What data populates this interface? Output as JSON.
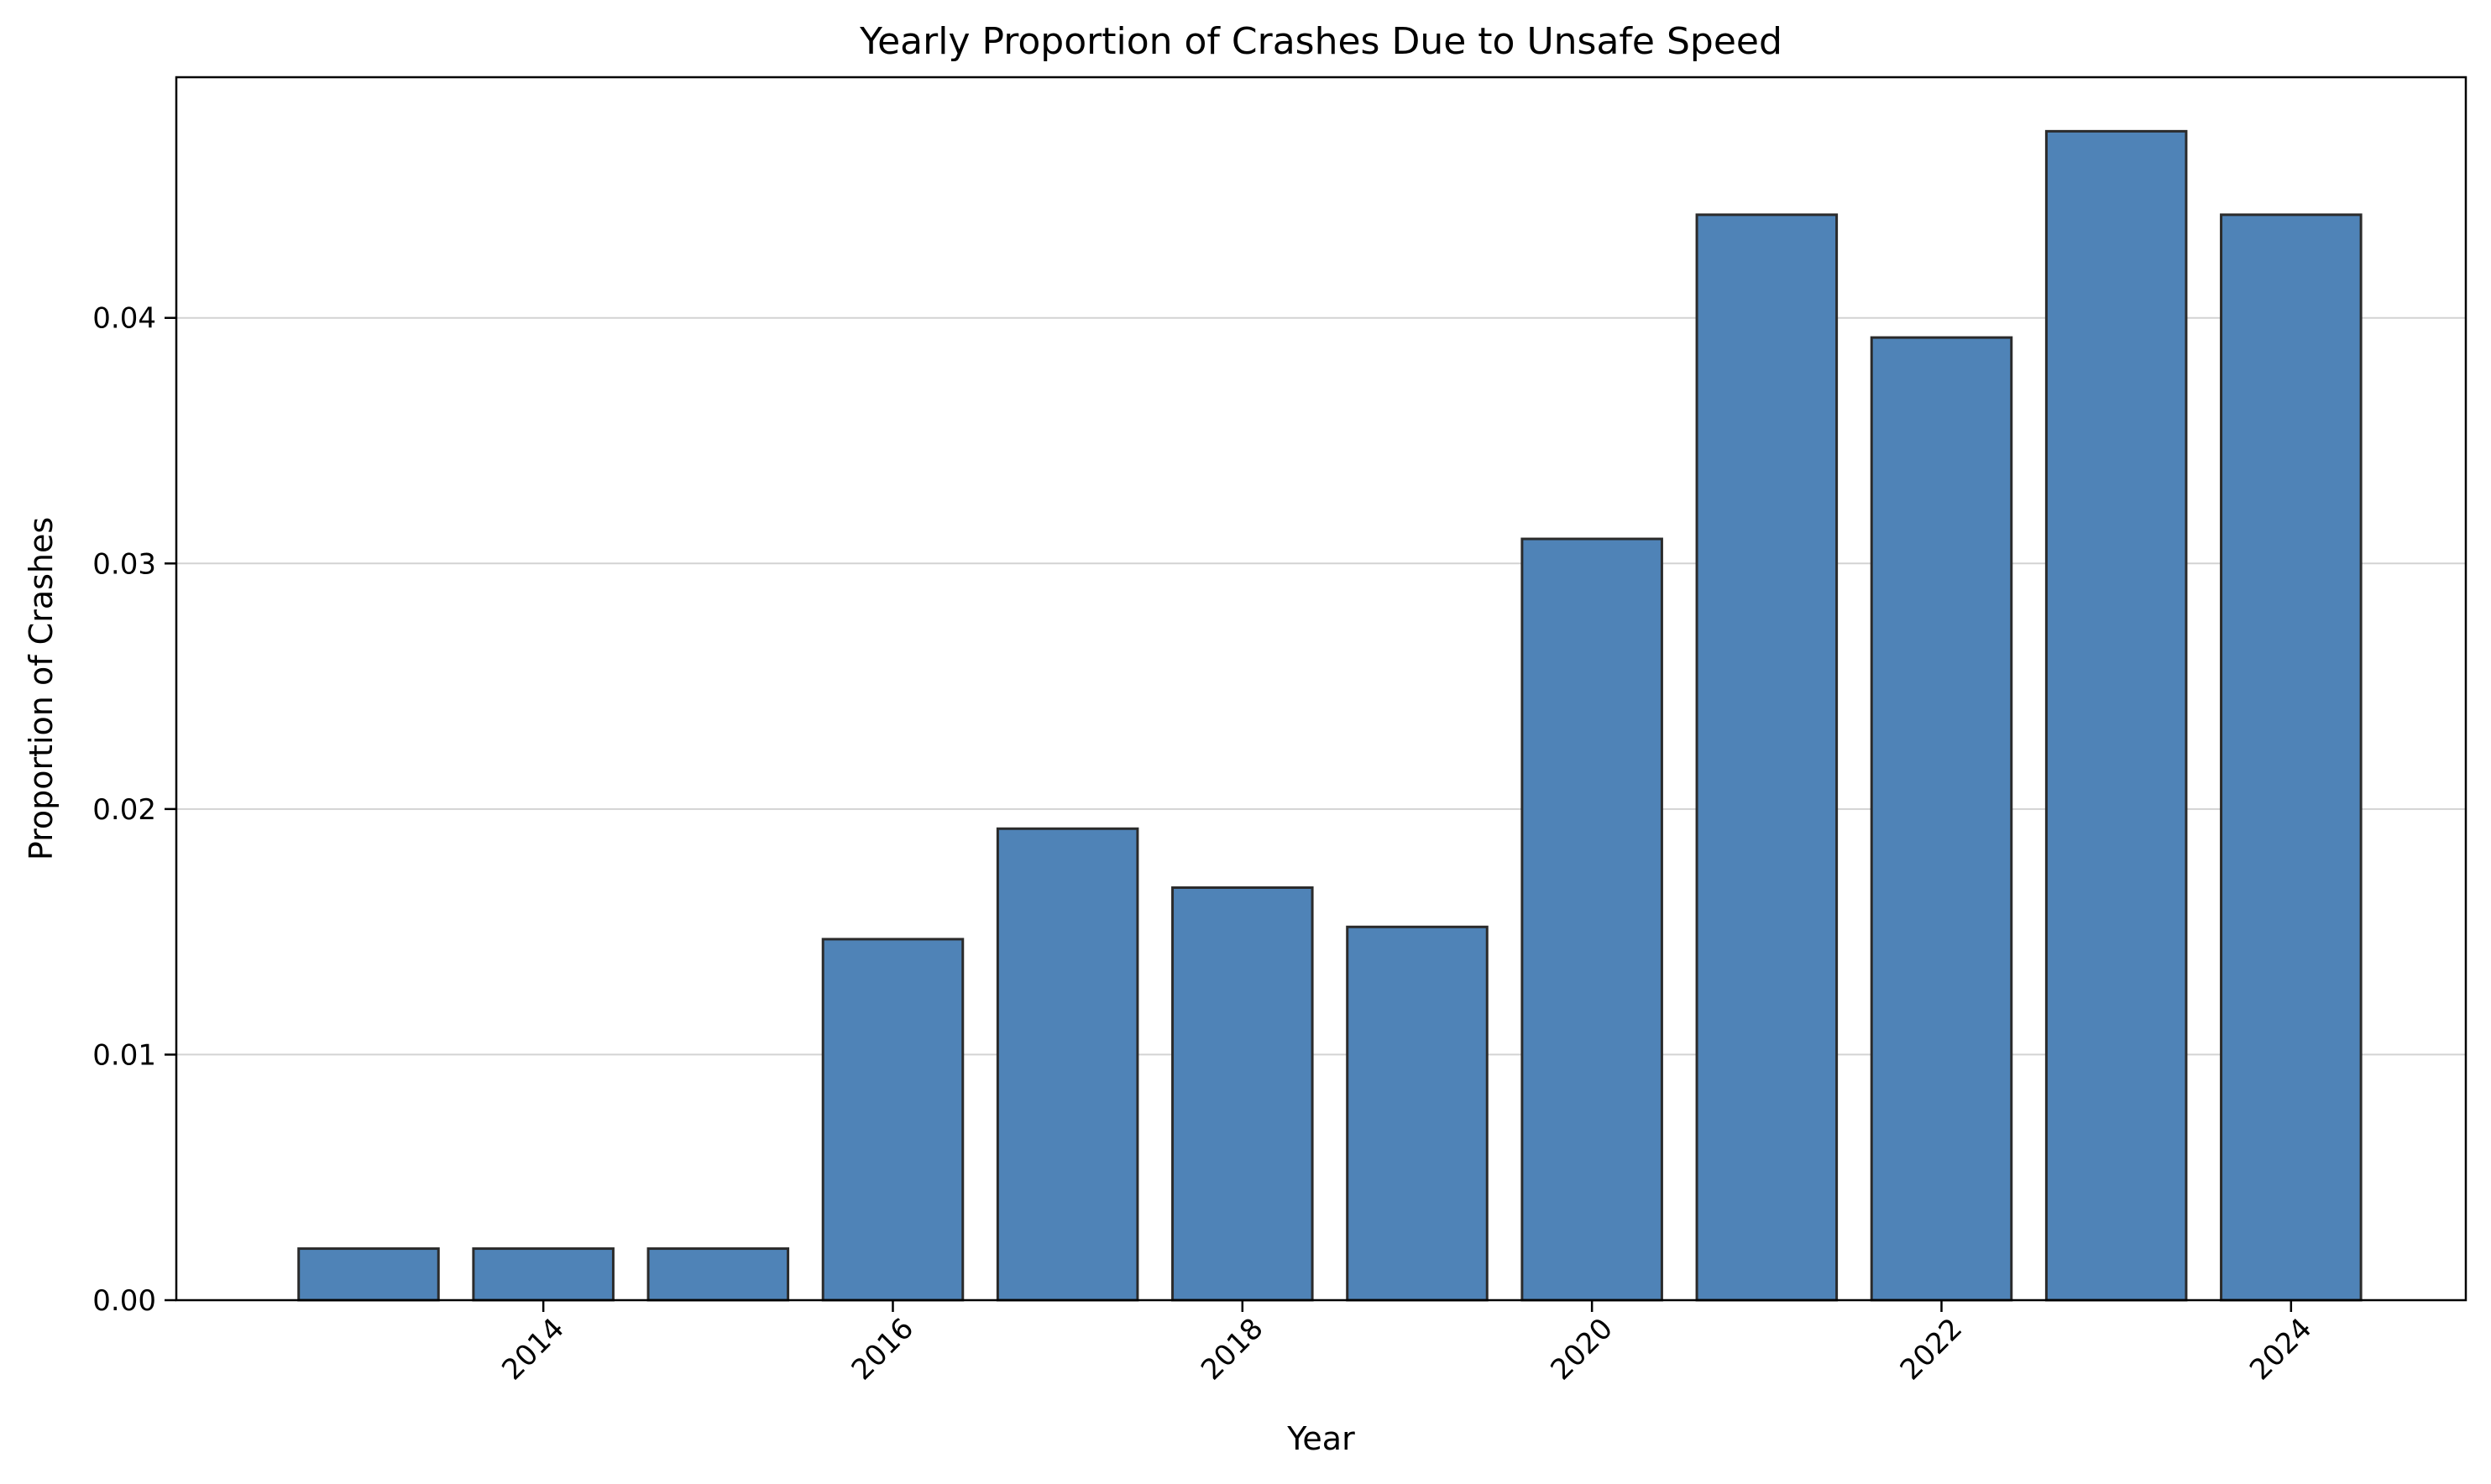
{
  "colors": {
    "bar_fill": "#4f83b7",
    "bar_edge": "#2b2b2b",
    "grid": "#d3d3d3",
    "axis": "#000000",
    "background": "#ffffff"
  },
  "chart_data": {
    "type": "bar",
    "title": "Yearly Proportion of Crashes Due to Unsafe Speed",
    "xlabel": "Year",
    "ylabel": "Proportion of Crashes",
    "x": [
      2013,
      2014,
      2015,
      2016,
      2017,
      2018,
      2019,
      2020,
      2021,
      2022,
      2023,
      2024
    ],
    "values": [
      0.0021,
      0.0021,
      0.0021,
      0.0147,
      0.0192,
      0.0168,
      0.0152,
      0.031,
      0.0442,
      0.0392,
      0.0476,
      0.0442
    ],
    "xlim": [
      2011.9,
      2025.0
    ],
    "ylim": [
      0,
      0.0498
    ],
    "x_ticks": [
      2014,
      2016,
      2018,
      2020,
      2022,
      2024
    ],
    "x_tick_labels": [
      "2014",
      "2016",
      "2018",
      "2020",
      "2022",
      "2024"
    ],
    "y_ticks": [
      0,
      0.01,
      0.02,
      0.03,
      0.04
    ],
    "y_tick_labels": [
      "0.00",
      "0.01",
      "0.02",
      "0.03",
      "0.04"
    ],
    "bar_width_years": 0.8,
    "grid": "y",
    "legend": "none"
  }
}
